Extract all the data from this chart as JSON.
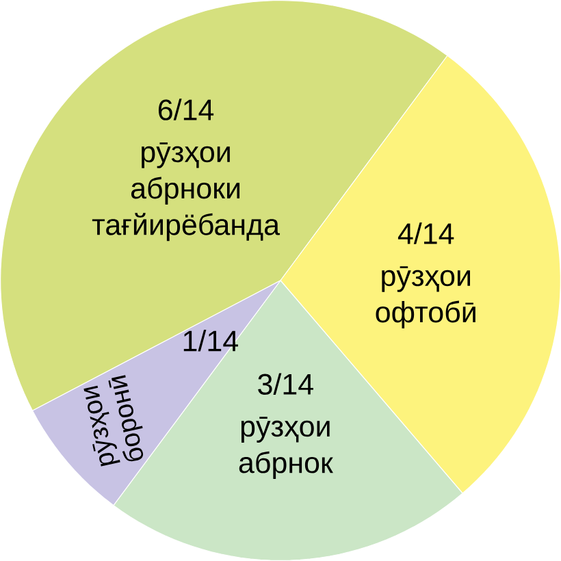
{
  "chart_data": {
    "type": "pie",
    "categories": [
      "рӯзҳои абрноки тағйирёбанда",
      "рӯзҳои офтобӣ",
      "рӯзҳои абрнок",
      "рӯзҳои боронӣ"
    ],
    "values": [
      6,
      4,
      3,
      1
    ],
    "value_labels": [
      "6/14",
      "4/14",
      "3/14",
      "1/14"
    ],
    "colors": [
      "#d5e07e",
      "#fdf37d",
      "#cbe6c6",
      "#c8c3e4"
    ]
  }
}
